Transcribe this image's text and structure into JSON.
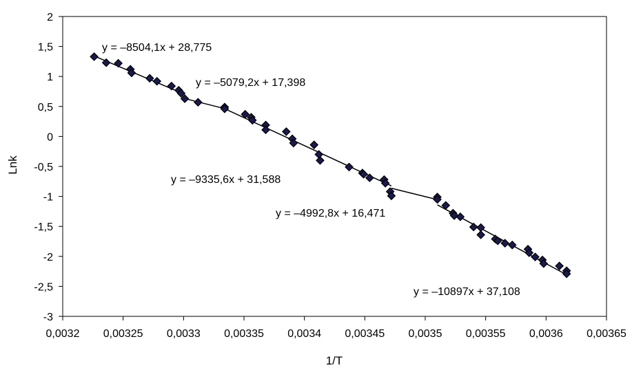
{
  "chart_data": {
    "type": "scatter",
    "title": "",
    "xlabel": "1/T",
    "ylabel": "Lnk",
    "xlim": [
      0.0032,
      0.00365
    ],
    "ylim": [
      -3,
      2
    ],
    "x_ticks": [
      "0,0032",
      "0,00325",
      "0,0033",
      "0,00335",
      "0,0034",
      "0,00345",
      "0,0035",
      "0,00355",
      "0,0036",
      "0,00365"
    ],
    "y_ticks": [
      "2",
      "1,5",
      "1",
      "0,5",
      "0",
      "-0,5",
      "-1",
      "-1,5",
      "-2",
      "-2,5",
      "-3"
    ],
    "x_tick_values": [
      0.0032,
      0.00325,
      0.0033,
      0.00335,
      0.0034,
      0.00345,
      0.0035,
      0.00355,
      0.0036,
      0.00365
    ],
    "y_tick_values": [
      2,
      1.5,
      1,
      0.5,
      0,
      -0.5,
      -1,
      -1.5,
      -2,
      -2.5,
      -3
    ],
    "grid": false,
    "legend": "none",
    "marker_color": "#1a1a4e",
    "marker_stroke": "#000000",
    "line_color": "#000000",
    "series": [
      {
        "points": [
          [
            0.003226,
            1.33
          ],
          [
            0.003236,
            1.23
          ],
          [
            0.003246,
            1.22
          ],
          [
            0.003256,
            1.12
          ],
          [
            0.003257,
            1.06
          ],
          [
            0.003272,
            0.97
          ],
          [
            0.003278,
            0.92
          ],
          [
            0.00329,
            0.84
          ],
          [
            0.003296,
            0.77
          ],
          [
            0.003298,
            0.72
          ],
          [
            0.003301,
            0.63
          ],
          [
            0.003312,
            0.57
          ],
          [
            0.003334,
            0.49
          ],
          [
            0.003334,
            0.46
          ],
          [
            0.003351,
            0.37
          ],
          [
            0.003356,
            0.32
          ],
          [
            0.003357,
            0.27
          ],
          [
            0.003368,
            0.19
          ],
          [
            0.003368,
            0.11
          ],
          [
            0.003385,
            0.08
          ],
          [
            0.00339,
            -0.04
          ],
          [
            0.003391,
            -0.11
          ],
          [
            0.003408,
            -0.14
          ],
          [
            0.003412,
            -0.3
          ],
          [
            0.003413,
            -0.4
          ],
          [
            0.003437,
            -0.51
          ],
          [
            0.003448,
            -0.61
          ],
          [
            0.003449,
            -0.63
          ],
          [
            0.003454,
            -0.69
          ],
          [
            0.003466,
            -0.72
          ],
          [
            0.003467,
            -0.78
          ],
          [
            0.003471,
            -0.92
          ],
          [
            0.003472,
            -0.99
          ],
          [
            0.00351,
            -1.01
          ],
          [
            0.00351,
            -1.05
          ],
          [
            0.003517,
            -1.15
          ],
          [
            0.003523,
            -1.28
          ],
          [
            0.003524,
            -1.32
          ],
          [
            0.003529,
            -1.34
          ],
          [
            0.00354,
            -1.51
          ],
          [
            0.003546,
            -1.52
          ],
          [
            0.003546,
            -1.64
          ],
          [
            0.003558,
            -1.71
          ],
          [
            0.00356,
            -1.74
          ],
          [
            0.003566,
            -1.78
          ],
          [
            0.003572,
            -1.81
          ],
          [
            0.003585,
            -1.88
          ],
          [
            0.003586,
            -1.94
          ],
          [
            0.003591,
            -2.01
          ],
          [
            0.003597,
            -2.06
          ],
          [
            0.003598,
            -2.12
          ],
          [
            0.003611,
            -2.16
          ],
          [
            0.003617,
            -2.24
          ],
          [
            0.003617,
            -2.29
          ]
        ]
      }
    ],
    "trend_lines": [
      {
        "equation": "y = –8504,1x + 28,775",
        "slope": -8504.1,
        "intercept": 28.775,
        "x_range": [
          0.003226,
          0.003301
        ]
      },
      {
        "equation": "y = –5079,2x + 17,398",
        "slope": -5079.2,
        "intercept": 17.398,
        "x_range": [
          0.003301,
          0.003334
        ]
      },
      {
        "equation": "y = –9335,6x + 31,588",
        "slope": -9335.6,
        "intercept": 31.588,
        "x_range": [
          0.003334,
          0.003472
        ]
      },
      {
        "equation": "y = –4992,8x + 16,471",
        "slope": -4992.8,
        "intercept": 16.471,
        "x_range": [
          0.003472,
          0.00351
        ]
      },
      {
        "equation": "y = –10897x + 37,108",
        "slope": -10897,
        "intercept": 37.108,
        "x_range": [
          0.00351,
          0.003617
        ]
      }
    ],
    "annotations": [
      "y = –8504,1x + 28,775",
      "y = –5079,2x + 17,398",
      "y = –9335,6x + 31,588",
      "y = –4992,8x + 16,471",
      "y = –10897x + 37,108"
    ]
  }
}
